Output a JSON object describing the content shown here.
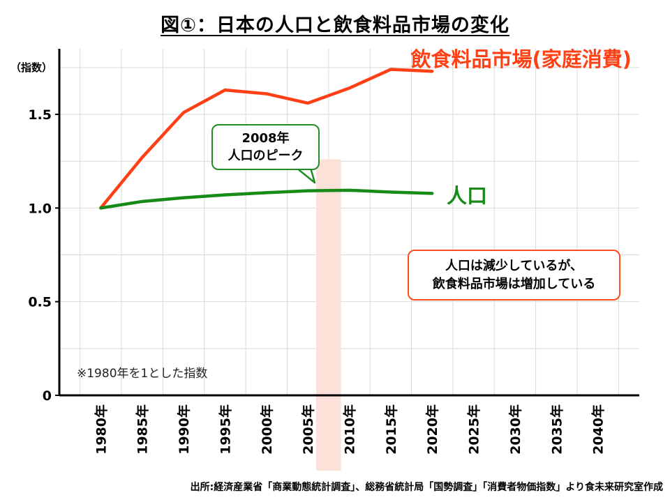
{
  "chart_data": {
    "type": "line",
    "title": "図①：日本の人口と飲食料品市場の変化",
    "ylabel": "（指数）",
    "ylim": [
      0,
      1.85
    ],
    "y_ticks": [
      "0",
      "0.5",
      "1.0",
      "1.5"
    ],
    "y_tick_values": [
      0,
      0.5,
      1.0,
      1.5
    ],
    "categories": [
      "1980年",
      "1985年",
      "1990年",
      "1995年",
      "2000年",
      "2005年",
      "2010年",
      "2015年",
      "2020年",
      "2025年",
      "2030年",
      "2035年",
      "2040年"
    ],
    "x_values": [
      1980,
      1985,
      1990,
      1995,
      2000,
      2005,
      2010,
      2015,
      2020,
      2025,
      2030,
      2035,
      2040
    ],
    "grid": true,
    "series": [
      {
        "name": "飲食料品市場(家庭消費)",
        "color": "#ff3f14",
        "x": [
          1980,
          1985,
          1990,
          1995,
          2000,
          2005,
          2010,
          2015,
          2020
        ],
        "values": [
          1.0,
          1.27,
          1.51,
          1.63,
          1.61,
          1.56,
          1.64,
          1.74,
          1.73
        ]
      },
      {
        "name": "人口",
        "color": "#178a17",
        "x": [
          1980,
          1985,
          1990,
          1995,
          2000,
          2005,
          2010,
          2015,
          2020
        ],
        "values": [
          1.0,
          1.035,
          1.055,
          1.07,
          1.082,
          1.092,
          1.095,
          1.085,
          1.078
        ]
      }
    ],
    "highlight": {
      "x_start": 2006,
      "x_end": 2009,
      "y_top": 1.26,
      "color": "#fde1d9"
    },
    "annotations": {
      "peak": [
        "2008年",
        "人口のピーク"
      ],
      "trend": [
        "人口は減少しているが、",
        "飲食料品市場は増加している"
      ],
      "footnote": "※1980年を1とした指数"
    },
    "source": "出所:経済産業省「商業動態統計調査」、総務省統計局「国勢調査」「消費者物価指数」より食未来研究室作成"
  }
}
